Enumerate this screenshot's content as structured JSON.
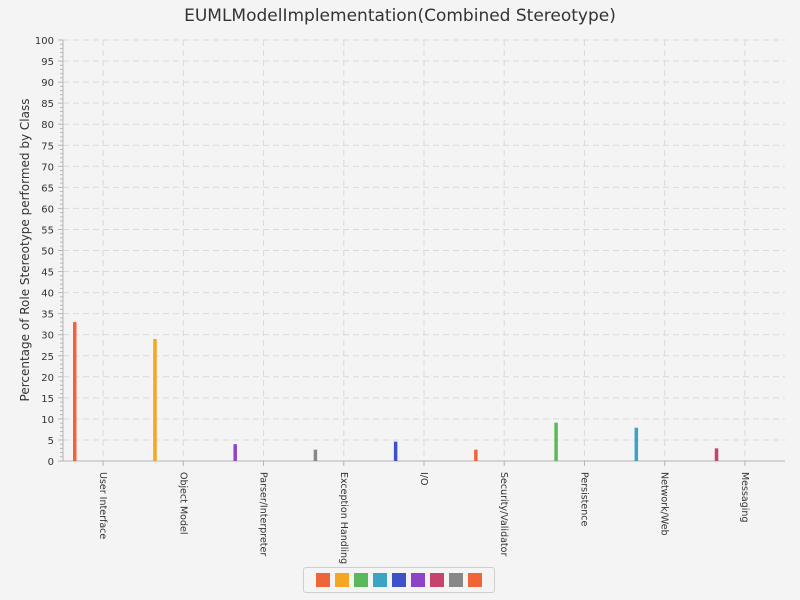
{
  "chart_data": {
    "type": "bar",
    "title": "EUMLModelImplementation(Combined Stereotype)",
    "xlabel": "",
    "ylabel": "Percentage of Role Stereotype performed by Class",
    "ylim": [
      0,
      100
    ],
    "yticks": [
      0,
      5,
      10,
      15,
      20,
      25,
      30,
      35,
      40,
      45,
      50,
      55,
      60,
      65,
      70,
      75,
      80,
      85,
      90,
      95,
      100
    ],
    "grid": true,
    "legend_position": "bottom",
    "categories": [
      "User Interface",
      "Object Model",
      "Parser/Interpreter",
      "Exception Handling",
      "I/O",
      "Security/Validator",
      "Persistence",
      "Network/Web",
      "Messaging"
    ],
    "values": [
      33,
      29,
      4,
      2.7,
      4.6,
      2.7,
      9.1,
      7.9,
      3
    ],
    "colors": [
      "#f0643a",
      "#f5a623",
      "#5cb85c",
      "#3ba3c4",
      "#3f51c8",
      "#8e44c9",
      "#c8436b",
      "#888888",
      "#f0643a"
    ],
    "bar_colors": [
      "#f0643a",
      "#f5a623",
      "#8e44c9",
      "#888888",
      "#3f51c8",
      "#f0643a",
      "#5cb85c",
      "#3ba3c4",
      "#c8436b"
    ]
  }
}
